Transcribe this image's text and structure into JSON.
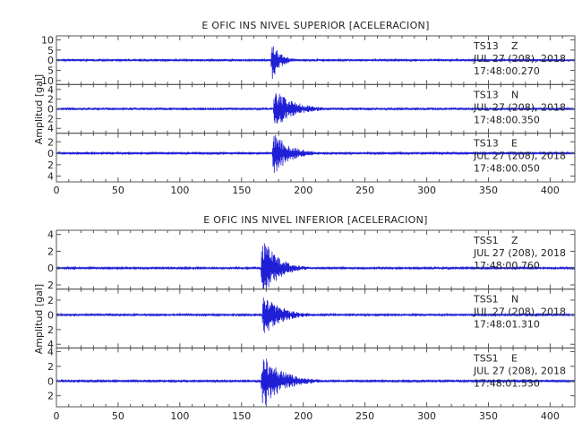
{
  "trace_color": "#1f1fd6",
  "chart_data": [
    {
      "type": "line",
      "title": "E OFIC INS NIVEL SUPERIOR [ACELERACION]",
      "ylabel": "Amplitud  [gal]",
      "xlim": [
        0,
        420
      ],
      "x_ticks": [
        0,
        50,
        100,
        150,
        200,
        250,
        300,
        350,
        400
      ],
      "panels": [
        {
          "station": "TS13",
          "component": "Z",
          "date": "JUL 27 (208), 2018",
          "time": "17:48:00.270",
          "ylim": [
            -12,
            12
          ],
          "y_ticks": [
            10,
            5,
            0,
            -5,
            -10
          ],
          "y_tick_labels": [
            "10",
            "5",
            "0",
            "5",
            "10"
          ],
          "onset": 174,
          "peak": 11,
          "decay": 7,
          "noise": 0.5
        },
        {
          "station": "TS13",
          "component": "N",
          "date": "JUL 27 (208), 2018",
          "time": "17:48:00.350",
          "ylim": [
            -5,
            5
          ],
          "y_ticks": [
            4,
            2,
            0,
            -2,
            -4
          ],
          "y_tick_labels": [
            "4",
            "2",
            "0",
            "2",
            "4"
          ],
          "onset": 176,
          "peak": 4.2,
          "decay": 16,
          "noise": 0.25
        },
        {
          "station": "TS13",
          "component": "E",
          "date": "JUL 27 (208), 2018",
          "time": "17:48:00.050",
          "ylim": [
            -5,
            3.5
          ],
          "y_ticks": [
            2,
            0,
            -2,
            -4
          ],
          "y_tick_labels": [
            "2",
            "0",
            "2",
            "4"
          ],
          "onset": 175,
          "peak": 4.2,
          "decay": 13,
          "noise": 0.15
        }
      ]
    },
    {
      "type": "line",
      "title": "E OFIC INS NIVEL INFERIOR [ACELERACION]",
      "ylabel": "Amplitud  [gal]",
      "xlim": [
        0,
        420
      ],
      "x_ticks": [
        0,
        50,
        100,
        150,
        200,
        250,
        300,
        350,
        400
      ],
      "panels": [
        {
          "station": "TSS1",
          "component": "Z",
          "date": "JUL 27 (208), 2018",
          "time": "17:48:00.760",
          "ylim": [
            -2.5,
            4.5
          ],
          "y_ticks": [
            4,
            2,
            0,
            -2
          ],
          "y_tick_labels": [
            "4",
            "2",
            "0",
            "2"
          ],
          "onset": 166,
          "peak": 4.2,
          "decay": 12,
          "noise": 0.1
        },
        {
          "station": "TSS1",
          "component": "N",
          "date": "JUL 27 (208), 2018",
          "time": "17:48:01.310",
          "ylim": [
            -4.5,
            3.5
          ],
          "y_ticks": [
            2,
            0,
            -2,
            -4
          ],
          "y_tick_labels": [
            "2",
            "0",
            "2",
            "4"
          ],
          "onset": 167,
          "peak": 3.2,
          "decay": 14,
          "noise": 0.12
        },
        {
          "station": "TSS1",
          "component": "E",
          "date": "JUL 27 (208), 2018",
          "time": "17:48:01.530",
          "ylim": [
            -3.5,
            4.5
          ],
          "y_ticks": [
            4,
            2,
            0,
            -2
          ],
          "y_tick_labels": [
            "4",
            "2",
            "0",
            "2"
          ],
          "onset": 166,
          "peak": 4.0,
          "decay": 16,
          "noise": 0.1
        }
      ]
    }
  ]
}
